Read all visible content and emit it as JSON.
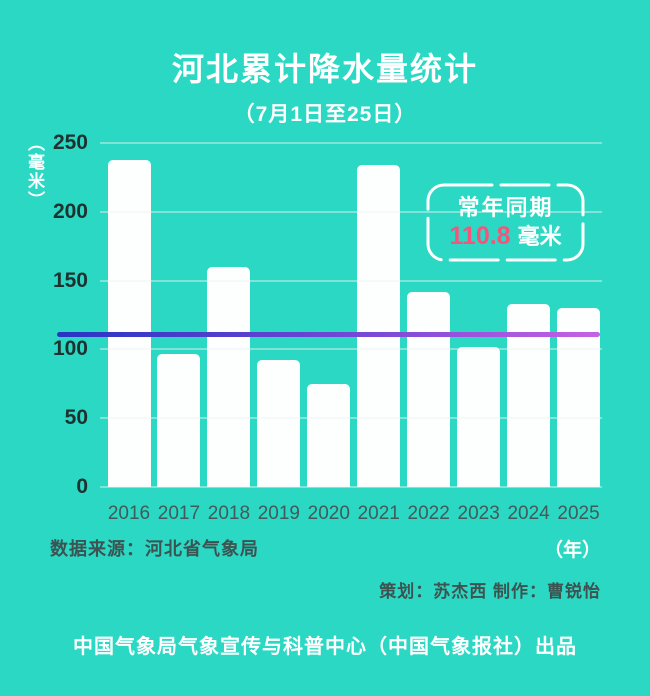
{
  "page": {
    "title": "河北累计降水量统计",
    "subtitle": "（7月1日至25日）"
  },
  "chart_data": {
    "type": "bar",
    "title": "河北累计降水量统计",
    "subtitle": "（7月1日至25日）",
    "categories": [
      "2016",
      "2017",
      "2018",
      "2019",
      "2020",
      "2021",
      "2022",
      "2023",
      "2024",
      "2025"
    ],
    "values": [
      238,
      97,
      160,
      92,
      75,
      234,
      142,
      102,
      133,
      130
    ],
    "unit": "毫米",
    "ylabel": "（毫米）",
    "xlabel": "（年）",
    "ylim": [
      0,
      250
    ],
    "yticks": [
      250,
      200,
      150,
      100,
      50,
      0
    ],
    "grid": true,
    "legend_position": "none",
    "reference_line": {
      "value": 110.8,
      "label": "常年同期",
      "value_text": "110.8",
      "unit_text": "毫米"
    }
  },
  "source": "数据来源：河北省气象局",
  "credits": "策划：苏杰西 制作：曹锐怡",
  "footer": "中国气象局气象宣传与科普中心（中国气象报社）出品",
  "colors": {
    "background": "#2BD8C4",
    "bar": "#FDFFFE",
    "grid": "rgba(235,245,243,0.45)",
    "line_start": "#2834C4",
    "line_mid": "#7448D5",
    "line_end": "#C761E5",
    "highlight_pink": "#F8537B",
    "y_tick_text": "#1E3230",
    "x_tick_text": "#445A59",
    "meta_text": "#3C5351",
    "title_text": "#FFFFFF"
  }
}
